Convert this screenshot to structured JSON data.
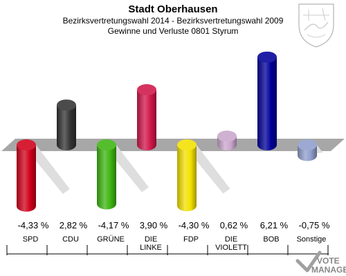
{
  "chart_data": {
    "type": "bar",
    "title": "Stadt Oberhausen",
    "subtitle": "Bezirksvertretungswahl 2014 - Bezirksvertretungswahl 2009",
    "subtitle2": "Gewinne und Verluste 0801 Styrum",
    "categories": [
      "SPD",
      "CDU",
      "GRÜNE",
      "DIE LINKE",
      "FDP",
      "DIE VIOLETT",
      "BOB",
      "Sonstige"
    ],
    "category_lines": [
      [
        "SPD"
      ],
      [
        "CDU"
      ],
      [
        "GRÜNE"
      ],
      [
        "DIE",
        "LINKE"
      ],
      [
        "FDP"
      ],
      [
        "DIE",
        "VIOLETT"
      ],
      [
        "BOB"
      ],
      [
        "Sonstige"
      ]
    ],
    "values": [
      -4.33,
      2.82,
      -4.17,
      3.9,
      -4.3,
      0.62,
      6.21,
      -0.75
    ],
    "value_labels": [
      "-4,33 %",
      "2,82 %",
      "-4,17 %",
      "3,90 %",
      "-4,30 %",
      "0,62 %",
      "6,21 %",
      "-0,75 %"
    ],
    "colors": [
      "#d0001a",
      "#333333",
      "#3db510",
      "#d0164a",
      "#f2e000",
      "#c9a6cc",
      "#000099",
      "#8f9dcc"
    ],
    "baseline": 0,
    "grid": false,
    "legend": "none"
  },
  "watermark": {
    "line1": "VOTE",
    "line2": "MANAGER"
  }
}
